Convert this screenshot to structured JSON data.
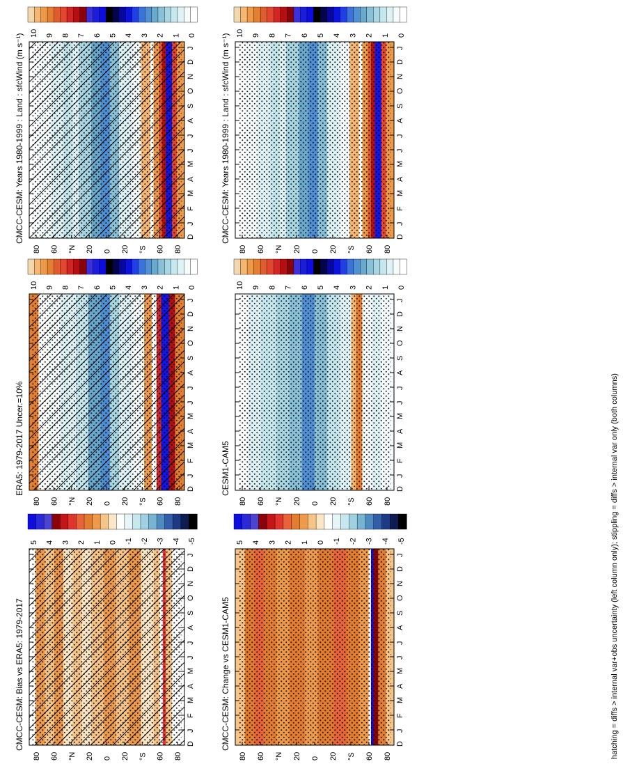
{
  "figure": {
    "footer": "hatching = diffs > internal var+obs uncertainty (left column only); stippling = diffs > internal var only (both columns)"
  },
  "colors": {
    "abs_scale": [
      "#ffffff",
      "#f6fcfc",
      "#dff3f6",
      "#c5e7ee",
      "#a8d6e3",
      "#89c2d8",
      "#6aa9ce",
      "#4f8fd4",
      "#3a73dc",
      "#1f40e8",
      "#0b12e0",
      "#09089e",
      "#04044a",
      "#000000"
    ],
    "abs_high": [
      "#f2d8ae",
      "#f5b772",
      "#ee9a49",
      "#e47f2f",
      "#e05c2c",
      "#e2462f",
      "#d42424",
      "#b50f13",
      "#8a0308",
      "#3b30d9",
      "#1b1ed8",
      "#0d0de0"
    ],
    "diff_scale": [
      "#0d0de0",
      "#2a2ad8",
      "#4c44d0",
      "#8a0308",
      "#c41518",
      "#e0352e",
      "#e86338",
      "#e27d2f",
      "#ed9a4a",
      "#f6c487",
      "#fbe6c6",
      "#ffffff",
      "#e6f6f8",
      "#c7e8ee",
      "#9fd1e0",
      "#76b4d2",
      "#4f8bc1",
      "#335eaa",
      "#1e3a84",
      "#0d1d52",
      "#000000"
    ]
  },
  "chart_data": [
    {
      "type": "heatmap",
      "panel": "top-left",
      "title": "CMCC-CESM: Years 1980-1999 : Land : sfcWind (m s⁻¹)",
      "x": [
        "J",
        "F",
        "M",
        "A",
        "M",
        "J",
        "J",
        "A",
        "S",
        "O",
        "N",
        "D",
        "J"
      ],
      "xlabel_extra": "D",
      "y": [
        "80",
        "60",
        "°N",
        "20",
        "0",
        "20",
        "°S",
        "60",
        "80"
      ],
      "colorbar": [
        "10",
        "9",
        "8",
        "7",
        "6",
        "5",
        "4",
        "3",
        "2",
        "1",
        "0"
      ],
      "overlay": [
        "hatching",
        "stippling"
      ]
    },
    {
      "type": "heatmap",
      "panel": "top-right",
      "title": "CMCC-CESM: Years 1980-1999 : Land : sfcWind (m s⁻¹)",
      "x": [
        "J",
        "F",
        "M",
        "A",
        "M",
        "J",
        "J",
        "A",
        "S",
        "O",
        "N",
        "D",
        "J"
      ],
      "xlabel_extra": "D",
      "y": [
        "80",
        "60",
        "°N",
        "20",
        "0",
        "20",
        "°S",
        "60",
        "80"
      ],
      "colorbar": [
        "10",
        "9",
        "8",
        "7",
        "6",
        "5",
        "4",
        "3",
        "2",
        "1",
        "0"
      ],
      "overlay": [
        "stippling"
      ]
    },
    {
      "type": "heatmap",
      "panel": "middle-left",
      "title": "ERA5: 1979-2017 Uncer.=10%",
      "x": [
        "J",
        "F",
        "M",
        "A",
        "M",
        "J",
        "J",
        "A",
        "S",
        "O",
        "N",
        "D",
        "J"
      ],
      "xlabel_extra": "D",
      "y": [
        "80",
        "60",
        "°N",
        "20",
        "0",
        "20",
        "°S",
        "60",
        "80"
      ],
      "colorbar": [
        "10",
        "9",
        "8",
        "7",
        "6",
        "5",
        "4",
        "3",
        "2",
        "1",
        "0"
      ],
      "overlay": [
        "hatching",
        "stippling"
      ]
    },
    {
      "type": "heatmap",
      "panel": "middle-right",
      "title": "CESM1-CAM5",
      "x": [
        "J",
        "F",
        "M",
        "A",
        "M",
        "J",
        "J",
        "A",
        "S",
        "O",
        "N",
        "D",
        "J"
      ],
      "xlabel_extra": "D",
      "y": [
        "80",
        "60",
        "°N",
        "20",
        "0",
        "20",
        "°S",
        "60",
        "80"
      ],
      "colorbar": [
        "10",
        "9",
        "8",
        "7",
        "6",
        "5",
        "4",
        "3",
        "2",
        "1",
        "0"
      ],
      "overlay": [
        "stippling"
      ]
    },
    {
      "type": "heatmap",
      "panel": "bottom-left",
      "title": "CMCC-CESM: Bias vs ERA5: 1979-2017",
      "x": [
        "J",
        "F",
        "M",
        "A",
        "M",
        "J",
        "J",
        "A",
        "S",
        "O",
        "N",
        "D",
        "J"
      ],
      "xlabel_extra": "D",
      "y": [
        "80",
        "60",
        "°N",
        "20",
        "0",
        "20",
        "°S",
        "60",
        "80"
      ],
      "colorbar": [
        "5",
        "4",
        "3",
        "2",
        "1",
        "0",
        "-1",
        "-2",
        "-3",
        "-4",
        "-5"
      ],
      "overlay": [
        "hatching",
        "stippling"
      ]
    },
    {
      "type": "heatmap",
      "panel": "bottom-right",
      "title": "CMCC-CESM: Change vs CESM1-CAM5",
      "x": [
        "J",
        "F",
        "M",
        "A",
        "M",
        "J",
        "J",
        "A",
        "S",
        "O",
        "N",
        "D",
        "J"
      ],
      "xlabel_extra": "D",
      "y": [
        "80",
        "60",
        "°N",
        "20",
        "0",
        "20",
        "°S",
        "60",
        "80"
      ],
      "colorbar": [
        "5",
        "4",
        "3",
        "2",
        "1",
        "0",
        "-1",
        "-2",
        "-3",
        "-4",
        "-5"
      ],
      "overlay": [
        "stippling"
      ]
    }
  ]
}
